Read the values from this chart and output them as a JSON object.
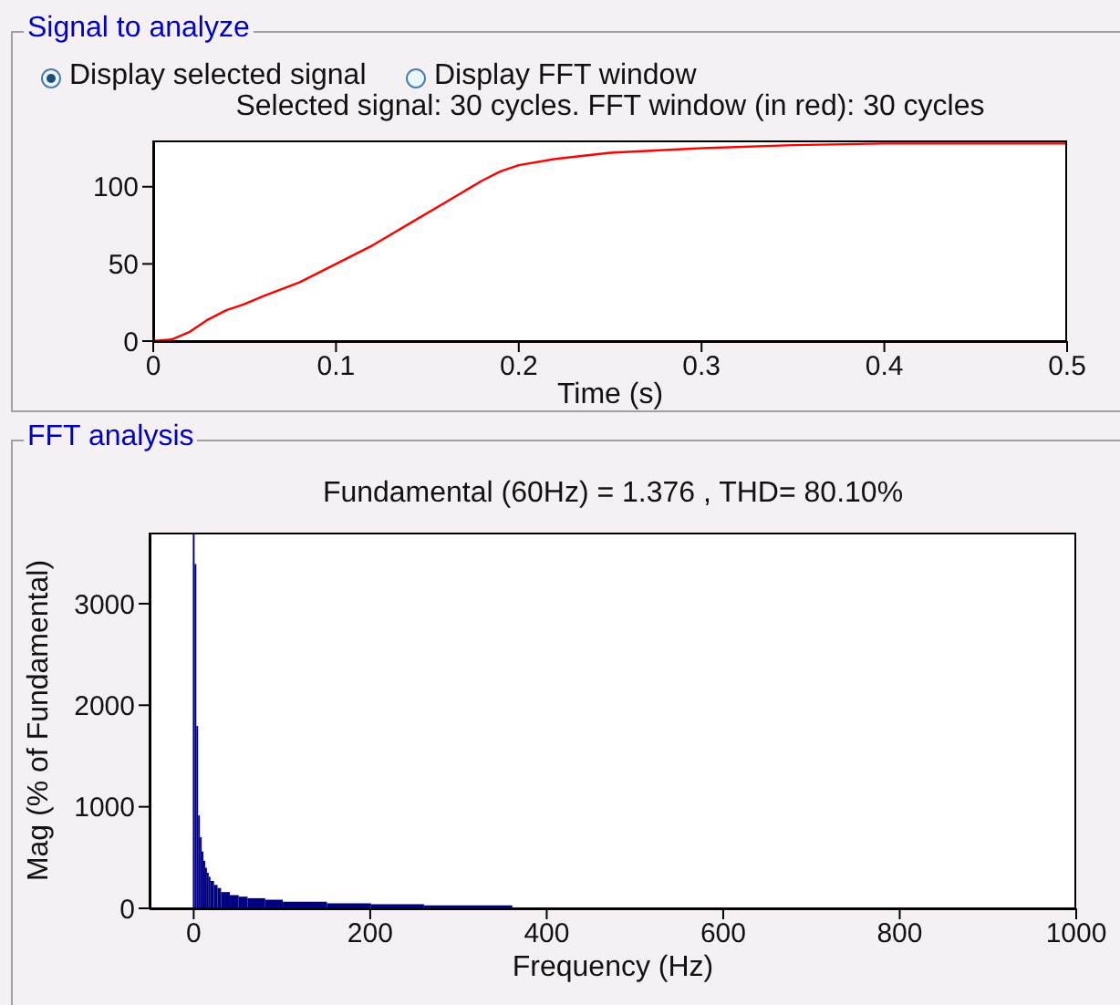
{
  "chart_data": [
    {
      "type": "line",
      "title": "Selected signal: 30 cycles. FFT window (in red): 30 cycles",
      "xlabel": "Time (s)",
      "annotations": [
        "Signal to analyze",
        "Display selected signal",
        "Display FFT window"
      ],
      "x": [
        0,
        0.01,
        0.02,
        0.03,
        0.04,
        0.05,
        0.06,
        0.08,
        0.1,
        0.12,
        0.14,
        0.16,
        0.18,
        0.19,
        0.2,
        0.22,
        0.25,
        0.3,
        0.35,
        0.4,
        0.5
      ],
      "series": [
        {
          "color": "#ff0000",
          "values": [
            0,
            1,
            6,
            14,
            20,
            24,
            29,
            38,
            50,
            62,
            76,
            90,
            104,
            110,
            114,
            118,
            122,
            125,
            127,
            128,
            128
          ]
        }
      ],
      "xlim": [
        0,
        0.5
      ],
      "xticks": [
        0,
        0.1,
        0.2,
        0.3,
        0.4,
        0.5
      ],
      "ylim": [
        0,
        130
      ],
      "yticks": [
        0,
        50,
        100
      ],
      "grid": false,
      "legend": false,
      "marker": "none",
      "line_style": "solid"
    },
    {
      "type": "histogram",
      "title": "Fundamental (60Hz) = 1.376 , THD= 80.10%",
      "xlabel": "Frequency (Hz)",
      "ylabel": "Mag (% of Fundamental)",
      "annotations": [
        "FFT analysis"
      ],
      "bins": [
        -1,
        1,
        3,
        5,
        7,
        9,
        11,
        13,
        15,
        17,
        19,
        23,
        27,
        31,
        41,
        51,
        61,
        81,
        101,
        151,
        201,
        261,
        361
      ],
      "values": [
        3700,
        3390,
        1795,
        915,
        700,
        560,
        470,
        400,
        350,
        310,
        270,
        230,
        200,
        160,
        130,
        115,
        100,
        85,
        65,
        50,
        40,
        30
      ],
      "color": "#000080",
      "xlim": [
        -50,
        1000
      ],
      "xticks": [
        0,
        200,
        400,
        600,
        800,
        1000
      ],
      "ylim": [
        0,
        3700
      ],
      "yticks": [
        0,
        1000,
        2000,
        3000
      ],
      "grid": false,
      "legend": false
    }
  ]
}
